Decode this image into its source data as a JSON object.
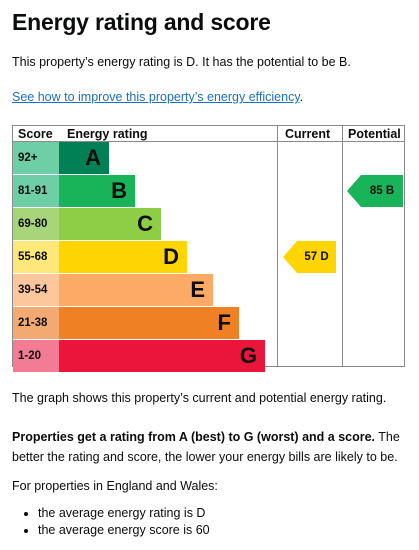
{
  "page": {
    "title": "Energy rating and score",
    "intro": "This property’s energy rating is D. It has the potential to be B.",
    "improve_link": "See how to improve this property’s energy efficiency",
    "improve_link_suffix": "."
  },
  "chart_data": {
    "type": "table",
    "headers": {
      "score": "Score",
      "rating": "Energy rating",
      "current": "Current",
      "potential": "Potential"
    },
    "bands": [
      {
        "range": "92+",
        "letter": "A",
        "color": "#008054",
        "range_color": "#6ecea5"
      },
      {
        "range": "81-91",
        "letter": "B",
        "color": "#19b459",
        "range_color": "#6ecea5"
      },
      {
        "range": "69-80",
        "letter": "C",
        "color": "#8dce46",
        "range_color": "#a8d47a"
      },
      {
        "range": "55-68",
        "letter": "D",
        "color": "#ffd500",
        "range_color": "#fee87a"
      },
      {
        "range": "39-54",
        "letter": "E",
        "color": "#fcaa65",
        "range_color": "#fcc79c"
      },
      {
        "range": "21-38",
        "letter": "F",
        "color": "#ef8023",
        "range_color": "#f3aa72"
      },
      {
        "range": "1-20",
        "letter": "G",
        "color": "#e9153b",
        "range_color": "#f27c94"
      }
    ],
    "current": {
      "label": "57 D",
      "score": 57,
      "band": "D",
      "color": "#ffd500"
    },
    "potential": {
      "label": "85 B",
      "score": 85,
      "band": "B",
      "color": "#19b459"
    }
  },
  "body": {
    "graph_note": "The graph shows this property’s current and potential energy rating.",
    "scale_bold": "Properties get a rating from A (best) to G (worst) and a score.",
    "scale_rest": " The better the rating and score, the lower your energy bills are likely to be.",
    "england_wales": "For properties in England and Wales:",
    "averages": [
      "the average energy rating is D",
      "the average energy score is 60"
    ]
  }
}
